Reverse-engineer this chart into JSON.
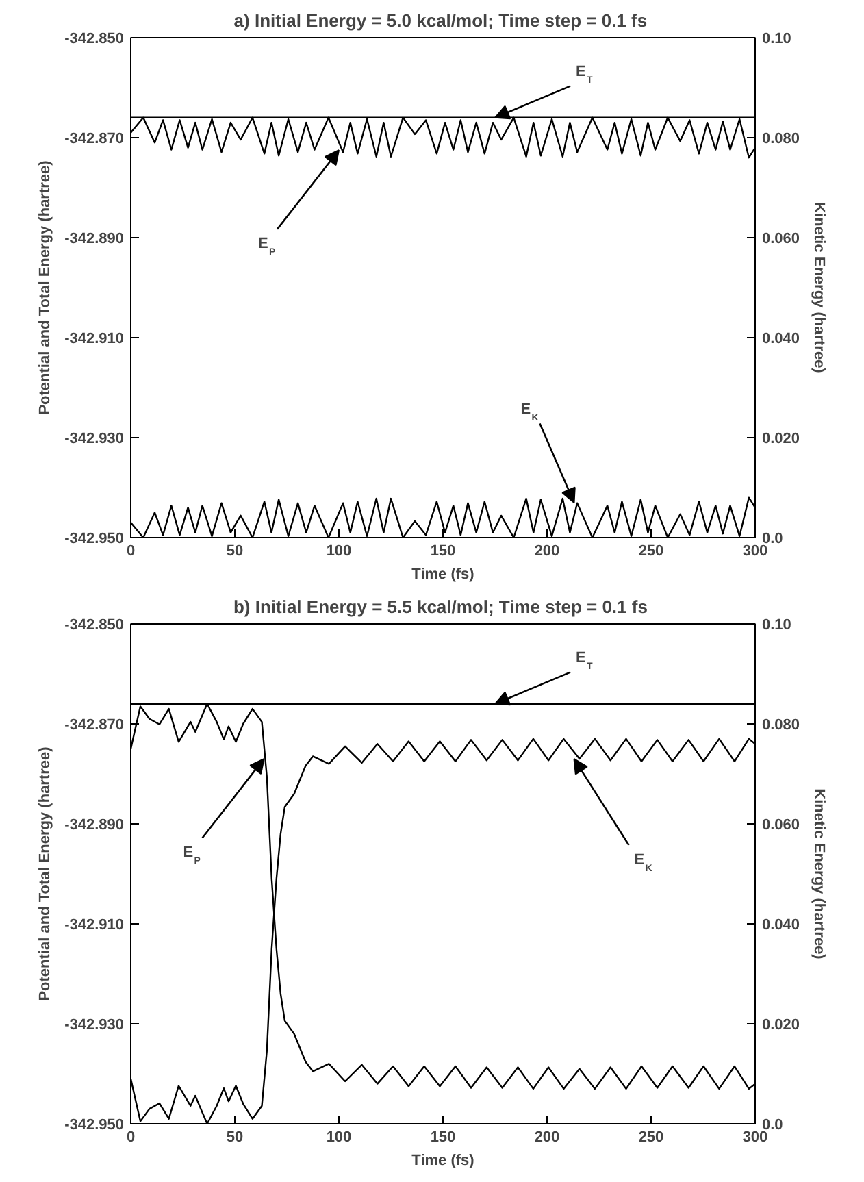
{
  "chart_data": [
    {
      "type": "line",
      "title": "a)  Initial Energy = 5.0 kcal/mol; Time step = 0.1 fs",
      "xlabel": "Time (fs)",
      "ylabel": "Potential and Total Energy (hartree)",
      "y2label": "Kinetic Energy (hartree)",
      "xlim": [
        0,
        300
      ],
      "xticks": [
        0,
        50,
        100,
        150,
        200,
        250,
        300
      ],
      "ylim": [
        -342.95,
        -342.85
      ],
      "yticks": [
        {
          "value": -342.95,
          "label": "-342.950"
        },
        {
          "value": -342.93,
          "label": "-342.930"
        },
        {
          "value": -342.91,
          "label": "-342.910"
        },
        {
          "value": -342.89,
          "label": "-342.890"
        },
        {
          "value": -342.87,
          "label": "-342.870"
        },
        {
          "value": -342.85,
          "label": "-342.850"
        }
      ],
      "y2lim": [
        0,
        0.1
      ],
      "y2ticks": [
        {
          "value": 0,
          "label": "0.0"
        },
        {
          "value": 0.02,
          "label": "0.020"
        },
        {
          "value": 0.04,
          "label": "0.040"
        },
        {
          "value": 0.06,
          "label": "0.060"
        },
        {
          "value": 0.08,
          "label": "0.080"
        },
        {
          "value": 0.1,
          "label": "0.10"
        }
      ],
      "series": [
        {
          "color": "#000000",
          "x": [
            0,
            300
          ],
          "values": [
            -342.866,
            -342.866
          ]
        },
        {
          "color": "#000000",
          "x": [
            0,
            6,
            11.5,
            15.5,
            19.5,
            23.5,
            27.5,
            31,
            34.4,
            39,
            43.6,
            48,
            52.8,
            58.5,
            64.2,
            67.6,
            71.1,
            75.7,
            80.3,
            84.3,
            88.3,
            95,
            102,
            105.5,
            109,
            113.5,
            118,
            121.5,
            125,
            130.8,
            136.5,
            141.8,
            147,
            151,
            155,
            158.5,
            162,
            166,
            170,
            174,
            178,
            184,
            190,
            193.5,
            197,
            202.3,
            207.5,
            211,
            214.5,
            221.8,
            229,
            232.5,
            236,
            240.5,
            245,
            248.5,
            252,
            258,
            264,
            268.5,
            273,
            277,
            281,
            284.5,
            288,
            292.5,
            297,
            300
          ],
          "values": [
            -342.869,
            -342.866,
            -342.871,
            -342.8665,
            -342.8724,
            -342.8665,
            -342.872,
            -342.867,
            -342.8724,
            -342.8663,
            -342.8729,
            -342.867,
            -342.8704,
            -342.866,
            -342.8732,
            -342.867,
            -342.8736,
            -342.8663,
            -342.8729,
            -342.867,
            -342.8724,
            -342.866,
            -342.8729,
            -342.867,
            -342.8732,
            -342.8663,
            -342.8738,
            -342.867,
            -342.8738,
            -342.866,
            -342.8693,
            -342.8665,
            -342.8732,
            -342.867,
            -342.8724,
            -342.8665,
            -342.8729,
            -342.867,
            -342.8732,
            -342.867,
            -342.8704,
            -342.866,
            -342.8738,
            -342.867,
            -342.8736,
            -342.8663,
            -342.8738,
            -342.867,
            -342.8729,
            -342.866,
            -342.8724,
            -342.867,
            -342.8732,
            -342.8663,
            -342.8736,
            -342.867,
            -342.8724,
            -342.866,
            -342.8707,
            -342.8665,
            -342.8732,
            -342.867,
            -342.8724,
            -342.8668,
            -342.8724,
            -342.8663,
            -342.874,
            -342.872
          ]
        },
        {
          "color": "#000000",
          "axis": "y2",
          "x": [
            0,
            6,
            11.5,
            15.5,
            19.5,
            23.5,
            27.5,
            31,
            34.4,
            39,
            43.6,
            48,
            52.8,
            58.5,
            64.2,
            67.6,
            71.1,
            75.7,
            80.3,
            84.3,
            88.3,
            95,
            102,
            105.5,
            109,
            113.5,
            118,
            121.5,
            125,
            130.8,
            136.5,
            141.8,
            147,
            151,
            155,
            158.5,
            162,
            166,
            170,
            174,
            178,
            184,
            190,
            193.5,
            197,
            202.3,
            207.5,
            211,
            214.5,
            221.8,
            229,
            232.5,
            236,
            240.5,
            245,
            248.5,
            252,
            258,
            264,
            268.5,
            273,
            277,
            281,
            284.5,
            288,
            292.5,
            297,
            300
          ],
          "values": [
            0.003,
            0.0,
            0.005,
            0.0005,
            0.0064,
            0.0005,
            0.006,
            0.001,
            0.0064,
            0.0003,
            0.0069,
            0.001,
            0.0044,
            0.0,
            0.0072,
            0.001,
            0.0076,
            0.0003,
            0.0069,
            0.001,
            0.0064,
            0.0,
            0.0069,
            0.001,
            0.0072,
            0.0003,
            0.0078,
            0.001,
            0.0078,
            0.0,
            0.0033,
            0.0005,
            0.0072,
            0.001,
            0.0064,
            0.0005,
            0.0069,
            0.001,
            0.0072,
            0.001,
            0.0044,
            0.0,
            0.0078,
            0.001,
            0.0076,
            0.0003,
            0.0078,
            0.001,
            0.0069,
            0.0,
            0.0064,
            0.001,
            0.0072,
            0.0003,
            0.0076,
            0.001,
            0.0064,
            0.0,
            0.0047,
            0.0005,
            0.0072,
            0.001,
            0.0064,
            0.0008,
            0.0064,
            0.0003,
            0.008,
            0.006
          ]
        }
      ],
      "annotations": [
        {
          "text": "E$_{T}$",
          "x": 175,
          "y": -342.866
        },
        {
          "text": "E$_{P}$",
          "x": 100,
          "y": -342.8725
        },
        {
          "text": "E$_{K}$",
          "x": 213,
          "y": -342.943
        }
      ]
    },
    {
      "type": "line",
      "title": "b)  Initial Energy = 5.5 kcal/mol; Time step = 0.1 fs",
      "xlabel": "Time (fs)",
      "ylabel": "Potential and Total Energy (hartree)",
      "y2label": "Kinetic Energy (hartree)",
      "xlim": [
        0,
        300
      ],
      "xticks": [
        0,
        50,
        100,
        150,
        200,
        250,
        300
      ],
      "ylim": [
        -342.95,
        -342.85
      ],
      "yticks": [
        {
          "value": -342.95,
          "label": "-342.950"
        },
        {
          "value": -342.93,
          "label": "-342.930"
        },
        {
          "value": -342.91,
          "label": "-342.910"
        },
        {
          "value": -342.89,
          "label": "-342.890"
        },
        {
          "value": -342.87,
          "label": "-342.870"
        },
        {
          "value": -342.85,
          "label": "-342.850"
        }
      ],
      "y2lim": [
        0,
        0.1
      ],
      "y2ticks": [
        {
          "value": 0,
          "label": "0.0"
        },
        {
          "value": 0.02,
          "label": "0.020"
        },
        {
          "value": 0.04,
          "label": "0.040"
        },
        {
          "value": 0.06,
          "label": "0.060"
        },
        {
          "value": 0.08,
          "label": "0.080"
        },
        {
          "value": 0.1,
          "label": "0.10"
        }
      ],
      "series": [
        {
          "color": "#000000",
          "x": [
            0,
            300
          ],
          "values": [
            -342.866,
            -342.866
          ]
        },
        {
          "color": "#000000",
          "x": [
            0,
            4.6,
            9,
            13.8,
            18.3,
            23,
            28.7,
            31,
            36.7,
            41.3,
            44.7,
            47,
            50.5,
            54,
            58.5,
            63,
            65.4,
            67.7,
            70,
            72,
            74,
            78.5,
            84,
            87.5,
            95.2,
            103,
            111,
            118.5,
            126,
            133.5,
            141,
            148.5,
            156,
            163.5,
            171,
            178.5,
            186,
            193.4,
            200.7,
            208,
            215.6,
            223,
            230.5,
            238,
            245.4,
            253,
            260.3,
            268,
            275.2,
            282.7,
            290.1,
            297,
            300
          ],
          "values": [
            -342.875,
            -342.8665,
            -342.869,
            -342.8701,
            -342.867,
            -342.8736,
            -342.8696,
            -342.8716,
            -342.866,
            -342.8696,
            -342.8731,
            -342.8705,
            -342.8736,
            -342.87,
            -342.867,
            -342.8696,
            -342.8806,
            -342.901,
            -342.915,
            -342.924,
            -342.9294,
            -342.932,
            -342.9376,
            -342.9395,
            -342.938,
            -342.9415,
            -342.9382,
            -342.942,
            -342.9385,
            -342.9425,
            -342.9385,
            -342.9425,
            -342.9385,
            -342.9428,
            -342.9387,
            -342.9428,
            -342.9387,
            -342.943,
            -342.9387,
            -342.943,
            -342.939,
            -342.943,
            -342.9387,
            -342.943,
            -342.9385,
            -342.9428,
            -342.9385,
            -342.9428,
            -342.9385,
            -342.943,
            -342.9385,
            -342.943,
            -342.942
          ]
        },
        {
          "color": "#000000",
          "axis": "y2",
          "x": [
            0,
            4.6,
            9,
            13.8,
            18.3,
            23,
            28.7,
            31,
            36.7,
            41.3,
            44.7,
            47,
            50.5,
            54,
            58.5,
            63,
            65.4,
            67.7,
            70,
            72,
            74,
            78.5,
            84,
            87.5,
            95.2,
            103,
            111,
            118.5,
            126,
            133.5,
            141,
            148.5,
            156,
            163.5,
            171,
            178.5,
            186,
            193.4,
            200.7,
            208,
            215.6,
            223,
            230.5,
            238,
            245.4,
            253,
            260.3,
            268,
            275.2,
            282.7,
            290.1,
            297,
            300
          ],
          "values": [
            0.009,
            0.0005,
            0.003,
            0.0041,
            0.001,
            0.0076,
            0.0036,
            0.0056,
            0.0,
            0.0036,
            0.0071,
            0.0045,
            0.0076,
            0.004,
            0.001,
            0.0036,
            0.0146,
            0.035,
            0.049,
            0.058,
            0.0634,
            0.066,
            0.0716,
            0.0735,
            0.072,
            0.0755,
            0.0722,
            0.076,
            0.0725,
            0.0765,
            0.0725,
            0.0765,
            0.0725,
            0.0768,
            0.0727,
            0.0768,
            0.0727,
            0.077,
            0.0727,
            0.077,
            0.073,
            0.077,
            0.0727,
            0.077,
            0.0725,
            0.0768,
            0.0725,
            0.0768,
            0.0725,
            0.077,
            0.0725,
            0.077,
            0.076
          ]
        }
      ],
      "annotations": [
        {
          "text": "E$_{T}$",
          "x": 175,
          "y": -342.866
        },
        {
          "text": "E$_{P}$",
          "x": 64,
          "y": -342.877
        },
        {
          "text": "E$_{K}$",
          "x": 213,
          "y": -342.877
        }
      ]
    }
  ]
}
